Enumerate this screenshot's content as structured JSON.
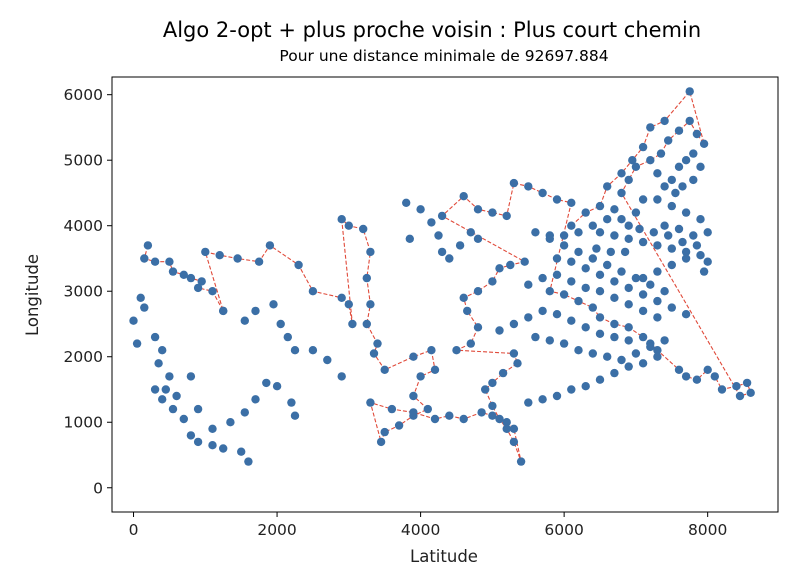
{
  "chart_data": {
    "type": "scatter",
    "title": "Algo 2-opt + plus proche voisin : Plus court chemin",
    "subtitle": "Pour une distance minimale de 92697.884",
    "xlabel": "Latitude",
    "ylabel": "Longitude",
    "xlim": [
      -300,
      8980
    ],
    "ylim": [
      -370,
      6270
    ],
    "xticks": [
      0,
      2000,
      4000,
      6000,
      8000
    ],
    "yticks": [
      0,
      1000,
      2000,
      3000,
      4000,
      5000,
      6000
    ],
    "grid": false,
    "colors": {
      "point": "#3b6fa6",
      "path": "#e04a3a"
    },
    "path": [
      [
        200,
        3700
      ],
      [
        150,
        3500
      ],
      [
        300,
        3450
      ],
      [
        500,
        3450
      ],
      [
        550,
        3300
      ],
      [
        700,
        3250
      ],
      [
        800,
        3200
      ],
      [
        950,
        3150
      ],
      [
        900,
        3050
      ],
      [
        1100,
        3000
      ],
      [
        1250,
        2700
      ],
      [
        1000,
        3600
      ],
      [
        1200,
        3550
      ],
      [
        1450,
        3500
      ],
      [
        1750,
        3450
      ],
      [
        1900,
        3700
      ],
      [
        2300,
        3400
      ],
      [
        2500,
        3000
      ],
      [
        2900,
        2900
      ],
      [
        3000,
        2800
      ],
      [
        3050,
        2500
      ],
      [
        2900,
        4100
      ],
      [
        3000,
        4000
      ],
      [
        3200,
        3950
      ],
      [
        3300,
        3600
      ],
      [
        3250,
        3200
      ],
      [
        3300,
        2800
      ],
      [
        3250,
        2500
      ],
      [
        3400,
        2200
      ],
      [
        3350,
        2050
      ],
      [
        3500,
        1800
      ],
      [
        3900,
        2000
      ],
      [
        4150,
        2100
      ],
      [
        4200,
        1800
      ],
      [
        4000,
        1700
      ],
      [
        3900,
        1400
      ],
      [
        4100,
        1200
      ],
      [
        3900,
        1100
      ],
      [
        3700,
        950
      ],
      [
        3500,
        850
      ],
      [
        3450,
        700
      ],
      [
        3300,
        1300
      ],
      [
        3600,
        1200
      ],
      [
        3900,
        1150
      ],
      [
        4200,
        1050
      ],
      [
        4400,
        1100
      ],
      [
        4600,
        1050
      ],
      [
        4850,
        1150
      ],
      [
        5000,
        1100
      ],
      [
        5200,
        1000
      ],
      [
        5300,
        900
      ],
      [
        5400,
        400
      ],
      [
        5300,
        700
      ],
      [
        5200,
        900
      ],
      [
        5100,
        1050
      ],
      [
        5000,
        1250
      ],
      [
        4900,
        1500
      ],
      [
        5000,
        1600
      ],
      [
        5150,
        1750
      ],
      [
        5350,
        1900
      ],
      [
        5300,
        2050
      ],
      [
        4500,
        2100
      ],
      [
        4700,
        2200
      ],
      [
        4800,
        2450
      ],
      [
        4650,
        2700
      ],
      [
        4600,
        2900
      ],
      [
        4800,
        3000
      ],
      [
        5000,
        3150
      ],
      [
        5100,
        3350
      ],
      [
        5250,
        3400
      ],
      [
        5450,
        3450
      ],
      [
        4300,
        4150
      ],
      [
        4600,
        4450
      ],
      [
        4800,
        4250
      ],
      [
        5000,
        4200
      ],
      [
        5200,
        4150
      ],
      [
        5300,
        4650
      ],
      [
        5500,
        4600
      ],
      [
        5700,
        4500
      ],
      [
        5900,
        4400
      ],
      [
        6100,
        4350
      ],
      [
        5800,
        3000
      ],
      [
        6000,
        2950
      ],
      [
        6200,
        2850
      ],
      [
        6400,
        2750
      ],
      [
        6500,
        2600
      ],
      [
        6700,
        2500
      ],
      [
        6900,
        2450
      ],
      [
        7100,
        2300
      ],
      [
        7200,
        2200
      ],
      [
        7300,
        2100
      ],
      [
        7600,
        1800
      ],
      [
        7700,
        1700
      ],
      [
        7850,
        1650
      ],
      [
        8000,
        1800
      ],
      [
        8100,
        1700
      ],
      [
        8200,
        1500
      ],
      [
        8400,
        1550
      ],
      [
        8550,
        1600
      ],
      [
        8600,
        1450
      ],
      [
        8450,
        1400
      ],
      [
        6800,
        4500
      ],
      [
        6900,
        4700
      ],
      [
        7000,
        4900
      ],
      [
        7200,
        5000
      ],
      [
        7350,
        5100
      ],
      [
        7450,
        5300
      ],
      [
        7600,
        5450
      ],
      [
        7750,
        5600
      ],
      [
        7850,
        5400
      ],
      [
        7950,
        5250
      ],
      [
        7750,
        6050
      ],
      [
        7400,
        5600
      ],
      [
        7200,
        5500
      ],
      [
        7100,
        5200
      ],
      [
        6950,
        5000
      ],
      [
        6800,
        4800
      ],
      [
        6600,
        4600
      ],
      [
        6500,
        4300
      ],
      [
        6300,
        4200
      ],
      [
        6100,
        4000
      ]
    ],
    "points": [
      [
        200,
        3700
      ],
      [
        150,
        3500
      ],
      [
        300,
        3450
      ],
      [
        500,
        3450
      ],
      [
        550,
        3300
      ],
      [
        700,
        3250
      ],
      [
        800,
        3200
      ],
      [
        950,
        3150
      ],
      [
        900,
        3050
      ],
      [
        1100,
        3000
      ],
      [
        1250,
        2700
      ],
      [
        1000,
        3600
      ],
      [
        1200,
        3550
      ],
      [
        1450,
        3500
      ],
      [
        1750,
        3450
      ],
      [
        1900,
        3700
      ],
      [
        2300,
        3400
      ],
      [
        2500,
        3000
      ],
      [
        2900,
        2900
      ],
      [
        3000,
        2800
      ],
      [
        3050,
        2500
      ],
      [
        100,
        2900
      ],
      [
        150,
        2750
      ],
      [
        0,
        2550
      ],
      [
        50,
        2200
      ],
      [
        300,
        2300
      ],
      [
        400,
        2100
      ],
      [
        350,
        1900
      ],
      [
        500,
        1700
      ],
      [
        450,
        1500
      ],
      [
        600,
        1400
      ],
      [
        300,
        1500
      ],
      [
        400,
        1350
      ],
      [
        550,
        1200
      ],
      [
        700,
        1050
      ],
      [
        800,
        800
      ],
      [
        900,
        700
      ],
      [
        1100,
        650
      ],
      [
        1250,
        600
      ],
      [
        1500,
        550
      ],
      [
        1600,
        400
      ],
      [
        800,
        1700
      ],
      [
        900,
        1200
      ],
      [
        1100,
        900
      ],
      [
        1350,
        1000
      ],
      [
        1550,
        1150
      ],
      [
        1700,
        1350
      ],
      [
        1850,
        1600
      ],
      [
        2000,
        1550
      ],
      [
        2200,
        1300
      ],
      [
        2250,
        1100
      ],
      [
        1250,
        2700
      ],
      [
        1550,
        2550
      ],
      [
        1700,
        2700
      ],
      [
        1950,
        2800
      ],
      [
        2050,
        2500
      ],
      [
        2150,
        2300
      ],
      [
        2250,
        2100
      ],
      [
        2500,
        2100
      ],
      [
        2700,
        1950
      ],
      [
        2900,
        1700
      ],
      [
        2900,
        4100
      ],
      [
        3000,
        4000
      ],
      [
        3200,
        3950
      ],
      [
        3300,
        3600
      ],
      [
        3250,
        3200
      ],
      [
        3300,
        2800
      ],
      [
        3250,
        2500
      ],
      [
        3400,
        2200
      ],
      [
        3350,
        2050
      ],
      [
        3500,
        1800
      ],
      [
        3900,
        2000
      ],
      [
        4150,
        2100
      ],
      [
        4200,
        1800
      ],
      [
        4000,
        1700
      ],
      [
        3900,
        1400
      ],
      [
        4100,
        1200
      ],
      [
        3900,
        1100
      ],
      [
        3700,
        950
      ],
      [
        3500,
        850
      ],
      [
        3450,
        700
      ],
      [
        3300,
        1300
      ],
      [
        3600,
        1200
      ],
      [
        3900,
        1150
      ],
      [
        4200,
        1050
      ],
      [
        4400,
        1100
      ],
      [
        4600,
        1050
      ],
      [
        4850,
        1150
      ],
      [
        5000,
        1100
      ],
      [
        5200,
        1000
      ],
      [
        5300,
        900
      ],
      [
        5400,
        400
      ],
      [
        5300,
        700
      ],
      [
        5200,
        900
      ],
      [
        5100,
        1050
      ],
      [
        5000,
        1250
      ],
      [
        4900,
        1500
      ],
      [
        5000,
        1600
      ],
      [
        5150,
        1750
      ],
      [
        5350,
        1900
      ],
      [
        5300,
        2050
      ],
      [
        3850,
        3800
      ],
      [
        3800,
        4350
      ],
      [
        4000,
        4250
      ],
      [
        4150,
        4050
      ],
      [
        4250,
        3850
      ],
      [
        4300,
        3600
      ],
      [
        4400,
        3500
      ],
      [
        4550,
        3700
      ],
      [
        4700,
        3900
      ],
      [
        4800,
        3800
      ],
      [
        4500,
        2100
      ],
      [
        4700,
        2200
      ],
      [
        4800,
        2450
      ],
      [
        4650,
        2700
      ],
      [
        4600,
        2900
      ],
      [
        4800,
        3000
      ],
      [
        5000,
        3150
      ],
      [
        5100,
        3350
      ],
      [
        5250,
        3400
      ],
      [
        5450,
        3450
      ],
      [
        4300,
        4150
      ],
      [
        4600,
        4450
      ],
      [
        4800,
        4250
      ],
      [
        5000,
        4200
      ],
      [
        5200,
        4150
      ],
      [
        5300,
        4650
      ],
      [
        5500,
        4600
      ],
      [
        5700,
        4500
      ],
      [
        5900,
        4400
      ],
      [
        6100,
        4350
      ],
      [
        5600,
        3900
      ],
      [
        5800,
        3850
      ],
      [
        6000,
        3700
      ],
      [
        6200,
        3600
      ],
      [
        6400,
        3500
      ],
      [
        6600,
        3400
      ],
      [
        6800,
        3300
      ],
      [
        7000,
        3200
      ],
      [
        7200,
        3100
      ],
      [
        7400,
        3000
      ],
      [
        5800,
        3000
      ],
      [
        6000,
        2950
      ],
      [
        6200,
        2850
      ],
      [
        6400,
        2750
      ],
      [
        6500,
        2600
      ],
      [
        6700,
        2500
      ],
      [
        6900,
        2450
      ],
      [
        7100,
        2300
      ],
      [
        7200,
        2200
      ],
      [
        7300,
        2100
      ],
      [
        7600,
        1800
      ],
      [
        7700,
        1700
      ],
      [
        7850,
        1650
      ],
      [
        8000,
        1800
      ],
      [
        8100,
        1700
      ],
      [
        8200,
        1500
      ],
      [
        8400,
        1550
      ],
      [
        8550,
        1600
      ],
      [
        8600,
        1450
      ],
      [
        8450,
        1400
      ],
      [
        5500,
        1300
      ],
      [
        5700,
        1350
      ],
      [
        5900,
        1400
      ],
      [
        6100,
        1500
      ],
      [
        6300,
        1550
      ],
      [
        6500,
        1650
      ],
      [
        6700,
        1750
      ],
      [
        6900,
        1850
      ],
      [
        7100,
        1900
      ],
      [
        7300,
        2000
      ],
      [
        5600,
        2300
      ],
      [
        5800,
        2250
      ],
      [
        6000,
        2200
      ],
      [
        6200,
        2100
      ],
      [
        6400,
        2050
      ],
      [
        6600,
        2000
      ],
      [
        6800,
        1950
      ],
      [
        7000,
        2050
      ],
      [
        7200,
        2150
      ],
      [
        7400,
        2250
      ],
      [
        6800,
        4500
      ],
      [
        6900,
        4700
      ],
      [
        7000,
        4900
      ],
      [
        7200,
        5000
      ],
      [
        7350,
        5100
      ],
      [
        7450,
        5300
      ],
      [
        7600,
        5450
      ],
      [
        7750,
        5600
      ],
      [
        7850,
        5400
      ],
      [
        7950,
        5250
      ],
      [
        7750,
        6050
      ],
      [
        7400,
        5600
      ],
      [
        7200,
        5500
      ],
      [
        7100,
        5200
      ],
      [
        6950,
        5000
      ],
      [
        6800,
        4800
      ],
      [
        6600,
        4600
      ],
      [
        6500,
        4300
      ],
      [
        6300,
        4200
      ],
      [
        6100,
        4000
      ],
      [
        7300,
        4400
      ],
      [
        7500,
        4300
      ],
      [
        7700,
        4200
      ],
      [
        7900,
        4100
      ],
      [
        8000,
        3900
      ],
      [
        7850,
        3700
      ],
      [
        7700,
        3500
      ],
      [
        7500,
        3400
      ],
      [
        7300,
        3300
      ],
      [
        7100,
        3200
      ],
      [
        6500,
        3900
      ],
      [
        6700,
        3850
      ],
      [
        6900,
        3800
      ],
      [
        7100,
        3750
      ],
      [
        7300,
        3700
      ],
      [
        7500,
        3650
      ],
      [
        7700,
        3600
      ],
      [
        7900,
        3550
      ],
      [
        8000,
        3450
      ],
      [
        7950,
        3300
      ],
      [
        5900,
        3500
      ],
      [
        6100,
        3450
      ],
      [
        6300,
        3350
      ],
      [
        6500,
        3250
      ],
      [
        6700,
        3150
      ],
      [
        6900,
        3050
      ],
      [
        7100,
        2950
      ],
      [
        7300,
        2850
      ],
      [
        7500,
        2750
      ],
      [
        7700,
        2650
      ],
      [
        5500,
        3100
      ],
      [
        5700,
        3200
      ],
      [
        5900,
        3250
      ],
      [
        6100,
        3150
      ],
      [
        6300,
        3050
      ],
      [
        6500,
        3000
      ],
      [
        6700,
        2900
      ],
      [
        6900,
        2800
      ],
      [
        7100,
        2700
      ],
      [
        7300,
        2600
      ],
      [
        5100,
        2400
      ],
      [
        5300,
        2500
      ],
      [
        5500,
        2600
      ],
      [
        5700,
        2700
      ],
      [
        5900,
        2650
      ],
      [
        6100,
        2550
      ],
      [
        6300,
        2450
      ],
      [
        6500,
        2350
      ],
      [
        6700,
        2300
      ],
      [
        6900,
        2250
      ],
      [
        7500,
        4700
      ],
      [
        7600,
        4900
      ],
      [
        7700,
        5000
      ],
      [
        7800,
        5100
      ],
      [
        7900,
        4900
      ],
      [
        7800,
        4700
      ],
      [
        7650,
        4600
      ],
      [
        7550,
        4500
      ],
      [
        7400,
        4600
      ],
      [
        7300,
        4800
      ],
      [
        7100,
        4400
      ],
      [
        7000,
        4200
      ],
      [
        6900,
        4000
      ],
      [
        6800,
        4100
      ],
      [
        6700,
        4250
      ],
      [
        6600,
        4100
      ],
      [
        6400,
        4000
      ],
      [
        6200,
        3900
      ],
      [
        6000,
        3850
      ],
      [
        5800,
        3800
      ],
      [
        7400,
        4000
      ],
      [
        7600,
        3950
      ],
      [
        7800,
        3850
      ],
      [
        7650,
        3750
      ],
      [
        7450,
        3850
      ],
      [
        7250,
        3900
      ],
      [
        7050,
        3950
      ],
      [
        6850,
        3600
      ],
      [
        6650,
        3600
      ],
      [
        6450,
        3650
      ]
    ]
  }
}
